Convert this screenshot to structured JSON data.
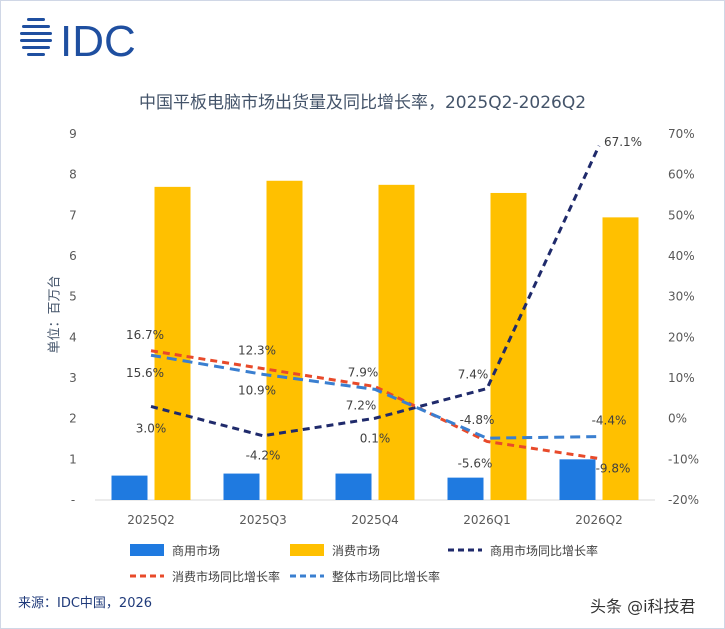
{
  "header": {
    "logo_text": "IDC",
    "title": "中国平板电脑市场出货量及同比增长率，2025Q2-2026Q2"
  },
  "footer": {
    "source": "来源：IDC中国，2026",
    "watermark": "头条 @i科技君"
  },
  "colors": {
    "commercial_bar": "#1f7ae0",
    "consumer_bar": "#ffc000",
    "commercial_yoy": "#1f2a6b",
    "consumer_yoy": "#e84a2a",
    "total_yoy": "#3a7fd0",
    "axis_text": "#595959",
    "grid": "#d9d9d9",
    "logo": "#1f4fa0"
  },
  "chart_data": {
    "type": "bar",
    "categories": [
      "2025Q2",
      "2025Q3",
      "2025Q4",
      "2026Q1",
      "2026Q2"
    ],
    "ylabel": "单位：百万台",
    "ylim": [
      0,
      9
    ],
    "y_ticks": [
      "-",
      "1",
      "2",
      "3",
      "4",
      "5",
      "6",
      "7",
      "8",
      "9"
    ],
    "y2lim": [
      -20,
      70
    ],
    "y2_ticks": [
      "-20%",
      "-10%",
      "0%",
      "10%",
      "20%",
      "30%",
      "40%",
      "50%",
      "60%",
      "70%"
    ],
    "grid": false,
    "legend_position": "bottom",
    "series": [
      {
        "name": "商用市场",
        "type": "bar",
        "axis": "left",
        "values": [
          0.6,
          0.65,
          0.65,
          0.55,
          1.0
        ]
      },
      {
        "name": "消费市场",
        "type": "bar",
        "axis": "left",
        "values": [
          7.7,
          7.85,
          7.75,
          7.55,
          6.95
        ]
      },
      {
        "name": "商用市场同比增长率",
        "type": "line",
        "axis": "right",
        "style": "dashed",
        "values": [
          3.0,
          -4.2,
          0.1,
          7.4,
          67.1
        ],
        "labels": [
          "3.0%",
          "-4.2%",
          "0.1%",
          "7.4%",
          "67.1%"
        ]
      },
      {
        "name": "消费市场同比增长率",
        "type": "line",
        "axis": "right",
        "style": "dashed",
        "values": [
          16.7,
          12.3,
          7.9,
          -5.6,
          -9.8
        ],
        "labels": [
          "16.7%",
          "12.3%",
          "7.9%",
          "-5.6%",
          "-9.8%"
        ]
      },
      {
        "name": "整体市场同比增长率",
        "type": "line",
        "axis": "right",
        "style": "dashed",
        "values": [
          15.6,
          10.9,
          7.2,
          -4.8,
          -4.4
        ],
        "labels": [
          "15.6%",
          "10.9%",
          "7.2%",
          "-4.8%",
          "-4.4%"
        ]
      }
    ]
  }
}
